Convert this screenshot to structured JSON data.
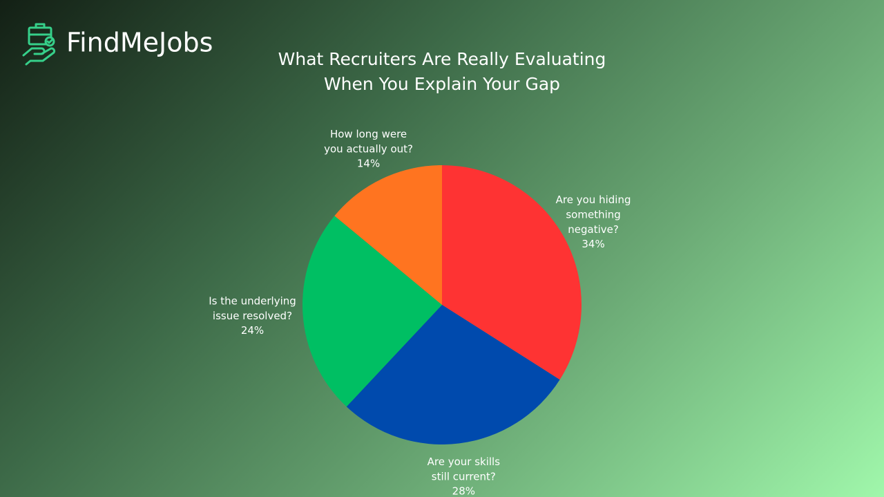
{
  "brand": "FindMeJobs",
  "chart_data": {
    "type": "pie",
    "title": "What Recruiters Are Really Evaluating When You Explain Your Gap",
    "categories": [
      "Are you hiding something negative?",
      "Are your skills still current?",
      "Is the underlying issue resolved?",
      "How long were you actually out?"
    ],
    "values": [
      34,
      28,
      24,
      14
    ],
    "value_labels": [
      "34%",
      "28%",
      "24%",
      "14%"
    ],
    "colors": [
      "#fe3333",
      "#004aad",
      "#00bf63",
      "#ff7420"
    ]
  }
}
